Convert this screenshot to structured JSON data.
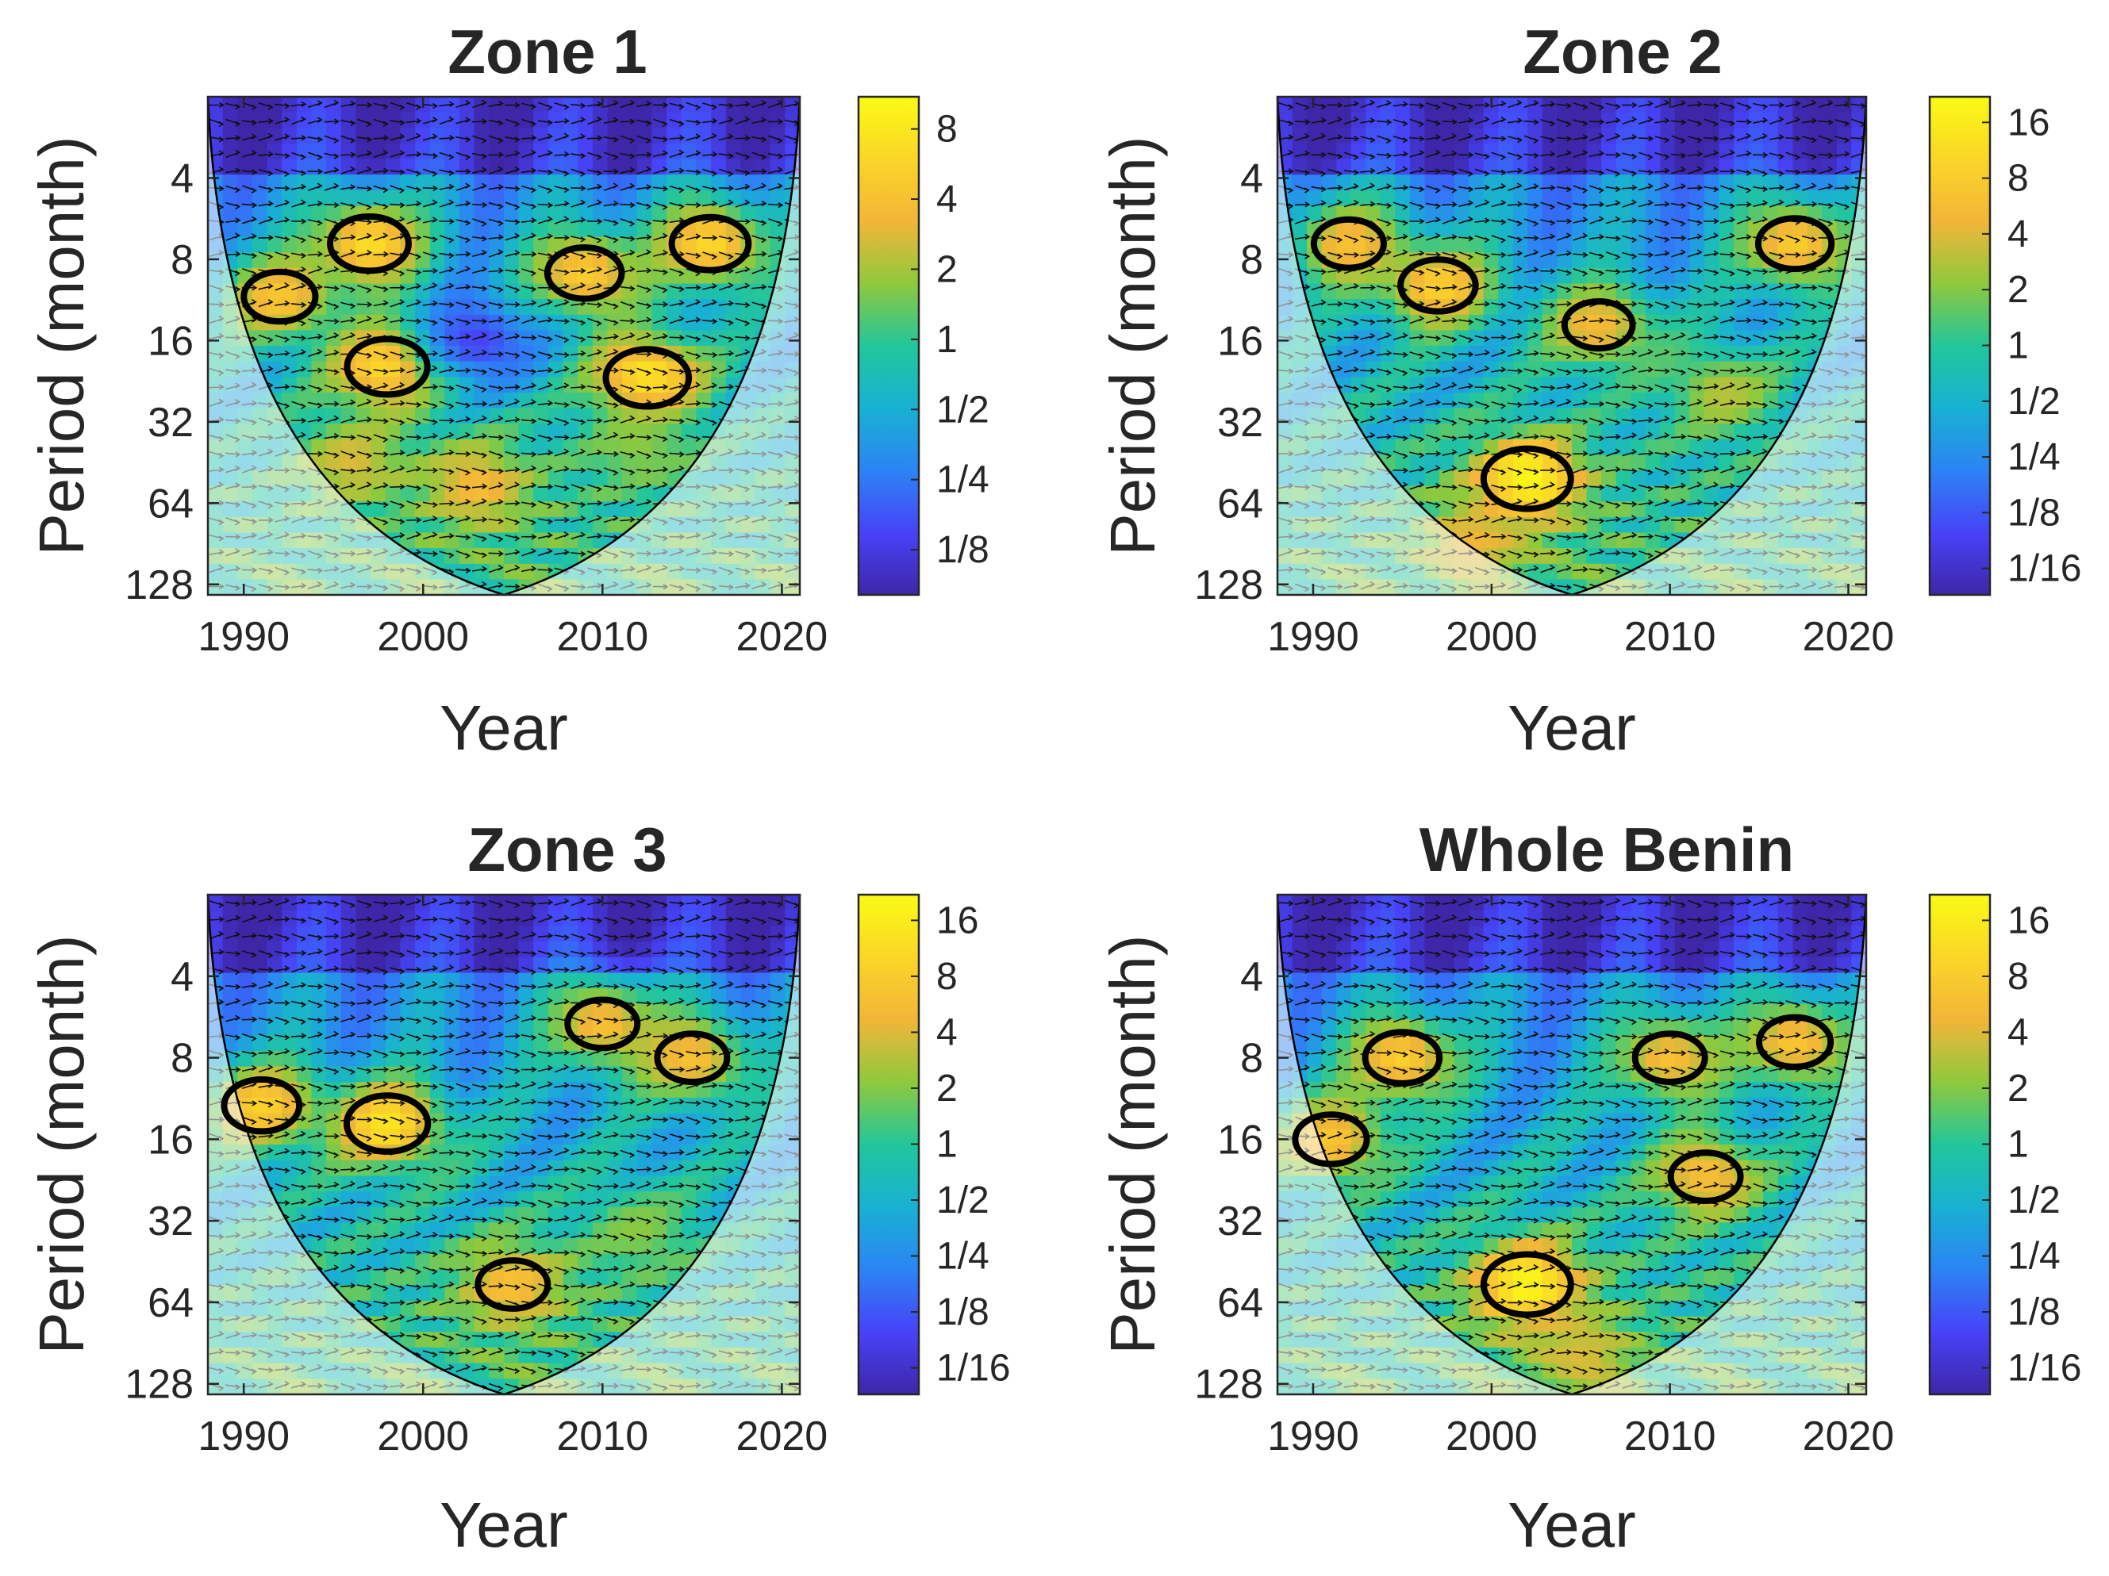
{
  "figure": {
    "description_panels": 4,
    "colormap": [
      "#3e26a8",
      "#4743f8",
      "#2c84f5",
      "#18b1d2",
      "#22c69c",
      "#8fc93c",
      "#f2b538",
      "#fbd627",
      "#f9fb14"
    ]
  },
  "chart_data": [
    {
      "type": "heatmap",
      "title": "Zone 1",
      "xlabel": "Year",
      "ylabel": "Period (month)",
      "x_ticks": [
        "1990",
        "2000",
        "2010",
        "2020"
      ],
      "x_tick_values": [
        1990,
        2000,
        2010,
        2020
      ],
      "xlim": [
        1988,
        2021
      ],
      "y_ticks": [
        "4",
        "8",
        "16",
        "32",
        "64",
        "128"
      ],
      "y_tick_values": [
        4,
        8,
        16,
        32,
        64,
        128
      ],
      "ylim": [
        2,
        140
      ],
      "y_scale": "log2 reversed",
      "colorbar_ticks": [
        "8",
        "4",
        "2",
        "1",
        "1/2",
        "1/4",
        "1/8"
      ],
      "colorbar_values": [
        8,
        4,
        2,
        1,
        0.5,
        0.25,
        0.125
      ],
      "colorbar_range": [
        0.08,
        11
      ],
      "cone_apex_year": 2004.5,
      "features": [
        {
          "year": 2012.5,
          "period": 22,
          "level": 0.95,
          "significant": true
        },
        {
          "year": 1998,
          "period": 20,
          "level": 0.92,
          "significant": true
        },
        {
          "year": 1997,
          "period": 7,
          "level": 0.9,
          "significant": true
        },
        {
          "year": 2016,
          "period": 7,
          "level": 0.88,
          "significant": true
        },
        {
          "year": 2009,
          "period": 9,
          "level": 0.85,
          "significant": true
        },
        {
          "year": 1992,
          "period": 11,
          "level": 0.82,
          "significant": true
        },
        {
          "year": 2003,
          "period": 55,
          "level": 0.78,
          "significant": false
        },
        {
          "year": 1996,
          "period": 45,
          "level": 0.72,
          "significant": false
        },
        {
          "year": 2012,
          "period": 40,
          "level": 0.62,
          "significant": false
        },
        {
          "year": 2003,
          "period": 16,
          "level": 0.12,
          "significant": false
        }
      ]
    },
    {
      "type": "heatmap",
      "title": "Zone 2",
      "xlabel": "Year",
      "ylabel": "Period (month)",
      "x_ticks": [
        "1990",
        "2000",
        "2010",
        "2020"
      ],
      "x_tick_values": [
        1990,
        2000,
        2010,
        2020
      ],
      "xlim": [
        1988,
        2021
      ],
      "y_ticks": [
        "4",
        "8",
        "16",
        "32",
        "64",
        "128"
      ],
      "y_tick_values": [
        4,
        8,
        16,
        32,
        64,
        128
      ],
      "ylim": [
        2,
        140
      ],
      "y_scale": "log2 reversed",
      "colorbar_ticks": [
        "16",
        "8",
        "4",
        "2",
        "1",
        "1/2",
        "1/4",
        "1/8",
        "1/16"
      ],
      "colorbar_values": [
        16,
        8,
        4,
        2,
        1,
        0.5,
        0.25,
        0.125,
        0.0625
      ],
      "colorbar_range": [
        0.045,
        22
      ],
      "cone_apex_year": 2004.5,
      "features": [
        {
          "year": 2002,
          "period": 52,
          "level": 1.0,
          "significant": true
        },
        {
          "year": 1997,
          "period": 10,
          "level": 0.86,
          "significant": true
        },
        {
          "year": 2017,
          "period": 7,
          "level": 0.84,
          "significant": true
        },
        {
          "year": 1992,
          "period": 7,
          "level": 0.8,
          "significant": true
        },
        {
          "year": 2006,
          "period": 14,
          "level": 0.78,
          "significant": true
        },
        {
          "year": 1999,
          "period": 90,
          "level": 0.75,
          "significant": false
        },
        {
          "year": 2013,
          "period": 25,
          "level": 0.68,
          "significant": false
        }
      ]
    },
    {
      "type": "heatmap",
      "title": "Zone 3",
      "xlabel": "Year",
      "ylabel": "Period (month)",
      "x_ticks": [
        "1990",
        "2000",
        "2010",
        "2020"
      ],
      "x_tick_values": [
        1990,
        2000,
        2010,
        2020
      ],
      "xlim": [
        1988,
        2021
      ],
      "y_ticks": [
        "4",
        "8",
        "16",
        "32",
        "64",
        "128"
      ],
      "y_tick_values": [
        4,
        8,
        16,
        32,
        64,
        128
      ],
      "ylim": [
        2,
        140
      ],
      "y_scale": "log2 reversed",
      "colorbar_ticks": [
        "16",
        "8",
        "4",
        "2",
        "1",
        "1/2",
        "1/4",
        "1/8",
        "1/16"
      ],
      "colorbar_values": [
        16,
        8,
        4,
        2,
        1,
        0.5,
        0.25,
        0.125,
        0.0625
      ],
      "colorbar_range": [
        0.045,
        22
      ],
      "cone_apex_year": 2004.5,
      "features": [
        {
          "year": 1998,
          "period": 14,
          "level": 0.93,
          "significant": true
        },
        {
          "year": 1991,
          "period": 12,
          "level": 0.86,
          "significant": true
        },
        {
          "year": 2005,
          "period": 55,
          "level": 0.8,
          "significant": true
        },
        {
          "year": 2010,
          "period": 6,
          "level": 0.8,
          "significant": true
        },
        {
          "year": 2015,
          "period": 8,
          "level": 0.8,
          "significant": true
        },
        {
          "year": 2012,
          "period": 35,
          "level": 0.62,
          "significant": false
        }
      ]
    },
    {
      "type": "heatmap",
      "title": "Whole Benin",
      "xlabel": "Year",
      "ylabel": "Period (month)",
      "x_ticks": [
        "1990",
        "2000",
        "2010",
        "2020"
      ],
      "x_tick_values": [
        1990,
        2000,
        2010,
        2020
      ],
      "xlim": [
        1988,
        2021
      ],
      "y_ticks": [
        "4",
        "8",
        "16",
        "32",
        "64",
        "128"
      ],
      "y_tick_values": [
        4,
        8,
        16,
        32,
        64,
        128
      ],
      "ylim": [
        2,
        140
      ],
      "y_scale": "log2 reversed",
      "colorbar_ticks": [
        "16",
        "8",
        "4",
        "2",
        "1",
        "1/2",
        "1/4",
        "1/8",
        "1/16"
      ],
      "colorbar_values": [
        16,
        8,
        4,
        2,
        1,
        0.5,
        0.25,
        0.125,
        0.0625
      ],
      "colorbar_range": [
        0.045,
        22
      ],
      "cone_apex_year": 2004.5,
      "features": [
        {
          "year": 2002,
          "period": 55,
          "level": 1.0,
          "significant": true
        },
        {
          "year": 1995,
          "period": 8,
          "level": 0.85,
          "significant": true
        },
        {
          "year": 1991,
          "period": 16,
          "level": 0.82,
          "significant": true
        },
        {
          "year": 2012,
          "period": 22,
          "level": 0.8,
          "significant": true
        },
        {
          "year": 2017,
          "period": 7,
          "level": 0.82,
          "significant": true
        },
        {
          "year": 2010,
          "period": 8,
          "level": 0.8,
          "significant": true
        },
        {
          "year": 2005,
          "period": 100,
          "level": 0.72,
          "significant": false
        }
      ]
    }
  ]
}
